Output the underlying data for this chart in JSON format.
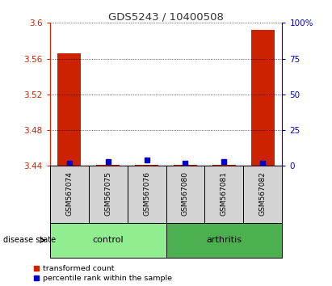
{
  "title": "GDS5243 / 10400508",
  "samples": [
    "GSM567074",
    "GSM567075",
    "GSM567076",
    "GSM567080",
    "GSM567081",
    "GSM567082"
  ],
  "transformed_counts": [
    3.566,
    3.441,
    3.441,
    3.441,
    3.441,
    3.592
  ],
  "percentile_ranks": [
    2,
    3,
    4,
    2,
    3,
    2
  ],
  "ylim_left": [
    3.44,
    3.6
  ],
  "ylim_right": [
    0,
    100
  ],
  "left_yticks": [
    3.44,
    3.48,
    3.52,
    3.56,
    3.6
  ],
  "right_yticks": [
    0,
    25,
    50,
    75,
    100
  ],
  "right_yticklabels": [
    "0",
    "25",
    "50",
    "75",
    "100%"
  ],
  "groups": [
    {
      "label": "control",
      "indices": [
        0,
        1,
        2
      ],
      "color": "#90EE90"
    },
    {
      "label": "arthritis",
      "indices": [
        3,
        4,
        5
      ],
      "color": "#4CAF50"
    }
  ],
  "bar_color": "#CC2200",
  "percentile_color": "#0000CC",
  "grid_color": "#000000",
  "sample_bg_color": "#D3D3D3",
  "title_color": "#333333",
  "left_axis_color": "#CC2200",
  "right_axis_color": "#0000CC",
  "bar_width": 0.6
}
